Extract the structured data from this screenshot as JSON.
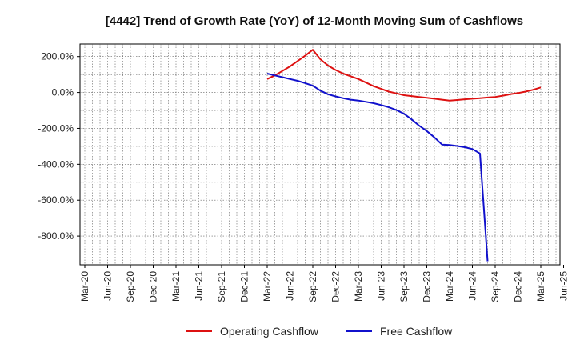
{
  "chart_data": {
    "type": "line",
    "title": "[4442]  Trend of Growth Rate (YoY) of 12-Month Moving Sum of Cashflows",
    "xlabel": "",
    "ylabel": "",
    "x_ticks": [
      "Mar-20",
      "Jun-20",
      "Sep-20",
      "Dec-20",
      "Mar-21",
      "Jun-21",
      "Sep-21",
      "Dec-21",
      "Mar-22",
      "Jun-22",
      "Sep-22",
      "Dec-22",
      "Mar-23",
      "Jun-23",
      "Sep-23",
      "Dec-23",
      "Mar-24",
      "Jun-24",
      "Sep-24",
      "Dec-24",
      "Mar-25",
      "Jun-25"
    ],
    "y_ticks": [
      "200.0%",
      "0.0%",
      "-200.0%",
      "-400.0%",
      "-600.0%",
      "-800.0%"
    ],
    "y_tick_values": [
      200,
      0,
      -200,
      -400,
      -600,
      -800
    ],
    "ylim": [
      -960,
      270
    ],
    "grid": true,
    "legend_position": "bottom",
    "series": [
      {
        "name": "Operating Cashflow",
        "color": "#dd1111",
        "points": [
          [
            "Mar-22",
            75
          ],
          [
            "Apr-22",
            95
          ],
          [
            "May-22",
            120
          ],
          [
            "Jun-22",
            145
          ],
          [
            "Jul-22",
            175
          ],
          [
            "Aug-22",
            205
          ],
          [
            "Sep-22",
            238
          ],
          [
            "Oct-22",
            185
          ],
          [
            "Nov-22",
            150
          ],
          [
            "Dec-22",
            125
          ],
          [
            "Jan-23",
            105
          ],
          [
            "Feb-23",
            90
          ],
          [
            "Mar-23",
            75
          ],
          [
            "Apr-23",
            55
          ],
          [
            "May-23",
            35
          ],
          [
            "Jun-23",
            20
          ],
          [
            "Jul-23",
            5
          ],
          [
            "Aug-23",
            -5
          ],
          [
            "Sep-23",
            -15
          ],
          [
            "Oct-23",
            -20
          ],
          [
            "Nov-23",
            -25
          ],
          [
            "Dec-23",
            -30
          ],
          [
            "Jan-24",
            -35
          ],
          [
            "Feb-24",
            -40
          ],
          [
            "Mar-24",
            -45
          ],
          [
            "Apr-24",
            -42
          ],
          [
            "May-24",
            -38
          ],
          [
            "Jun-24",
            -35
          ],
          [
            "Jul-24",
            -32
          ],
          [
            "Aug-24",
            -28
          ],
          [
            "Sep-24",
            -25
          ],
          [
            "Oct-24",
            -18
          ],
          [
            "Nov-24",
            -10
          ],
          [
            "Dec-24",
            -3
          ],
          [
            "Jan-25",
            5
          ],
          [
            "Feb-25",
            15
          ],
          [
            "Mar-25",
            28
          ]
        ]
      },
      {
        "name": "Free Cashflow",
        "color": "#1111cc",
        "points": [
          [
            "Mar-22",
            105
          ],
          [
            "Apr-22",
            95
          ],
          [
            "May-22",
            85
          ],
          [
            "Jun-22",
            75
          ],
          [
            "Jul-22",
            65
          ],
          [
            "Aug-22",
            52
          ],
          [
            "Sep-22",
            38
          ],
          [
            "Oct-22",
            10
          ],
          [
            "Nov-22",
            -10
          ],
          [
            "Dec-22",
            -22
          ],
          [
            "Jan-23",
            -32
          ],
          [
            "Feb-23",
            -40
          ],
          [
            "Mar-23",
            -45
          ],
          [
            "Apr-23",
            -52
          ],
          [
            "May-23",
            -60
          ],
          [
            "Jun-23",
            -70
          ],
          [
            "Jul-23",
            -82
          ],
          [
            "Aug-23",
            -98
          ],
          [
            "Sep-23",
            -118
          ],
          [
            "Oct-23",
            -150
          ],
          [
            "Nov-23",
            -185
          ],
          [
            "Dec-23",
            -215
          ],
          [
            "Jan-24",
            -250
          ],
          [
            "Feb-24",
            -290
          ],
          [
            "Mar-24",
            -293
          ],
          [
            "Apr-24",
            -298
          ],
          [
            "May-24",
            -305
          ],
          [
            "Jun-24",
            -315
          ],
          [
            "Jul-24",
            -340
          ],
          [
            "Aug-24",
            -940
          ]
        ]
      }
    ]
  }
}
